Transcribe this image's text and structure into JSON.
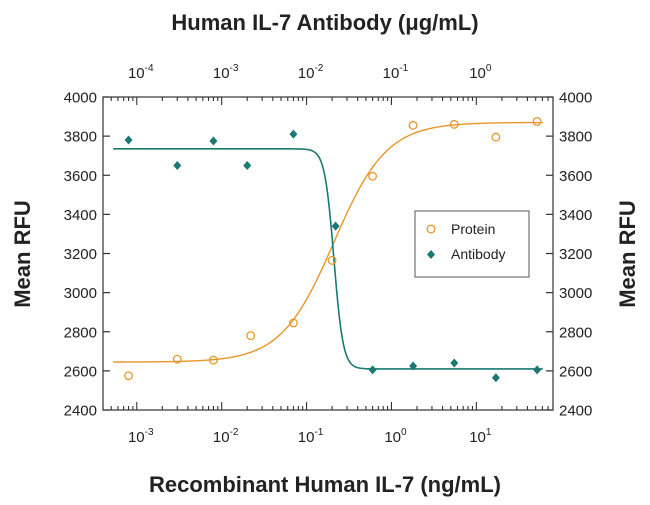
{
  "chart_data": {
    "type": "scatter",
    "top_xlabel": "Human IL-7 Antibody (μg/mL)",
    "xlabel": "Recombinant Human IL-7 (ng/mL)",
    "ylabel_left": "Mean RFU",
    "ylabel_right": "Mean RFU",
    "x_scale": "log",
    "xlim": [
      0.0004,
      80
    ],
    "top_xlim": [
      4e-05,
      8
    ],
    "ylim": [
      2400,
      4000
    ],
    "yticks": [
      2400,
      2600,
      2800,
      3000,
      3200,
      3400,
      3600,
      3800,
      4000
    ],
    "bottom_ticks": [
      {
        "value": 0.001,
        "base": "10",
        "exp": "-3"
      },
      {
        "value": 0.01,
        "base": "10",
        "exp": "-2"
      },
      {
        "value": 0.1,
        "base": "10",
        "exp": "-1"
      },
      {
        "value": 1,
        "base": "10",
        "exp": "0"
      },
      {
        "value": 10,
        "base": "10",
        "exp": "1"
      }
    ],
    "top_ticks": [
      {
        "value": 0.0001,
        "base": "10",
        "exp": "-4"
      },
      {
        "value": 0.001,
        "base": "10",
        "exp": "-3"
      },
      {
        "value": 0.01,
        "base": "10",
        "exp": "-2"
      },
      {
        "value": 0.1,
        "base": "10",
        "exp": "-1"
      },
      {
        "value": 1,
        "base": "10",
        "exp": "0"
      }
    ],
    "legend_position": "right-center",
    "series": [
      {
        "name": "Protein",
        "marker": "circle-open",
        "color": "#e8962a",
        "x": [
          0.0008,
          0.003,
          0.008,
          0.022,
          0.07,
          0.2,
          0.6,
          1.8,
          5.5,
          17,
          52
        ],
        "y": [
          2575,
          2660,
          2655,
          2780,
          2845,
          3165,
          3595,
          3855,
          3860,
          3795,
          3875
        ],
        "fit": {
          "bottom": 2645,
          "top": 3870,
          "ec50": 0.21,
          "hill": 1.4
        }
      },
      {
        "name": "Antibody",
        "marker": "diamond-filled",
        "color": "#1a7a72",
        "x": [
          0.0008,
          0.003,
          0.008,
          0.02,
          0.07,
          0.22,
          0.6,
          1.8,
          5.5,
          17,
          52
        ],
        "y": [
          3780,
          3650,
          3775,
          3650,
          3810,
          3340,
          2605,
          2625,
          2640,
          2565,
          2605
        ],
        "fit": {
          "top": 3735,
          "bottom": 2610,
          "ec50": 0.21,
          "hill": 8
        }
      }
    ]
  }
}
